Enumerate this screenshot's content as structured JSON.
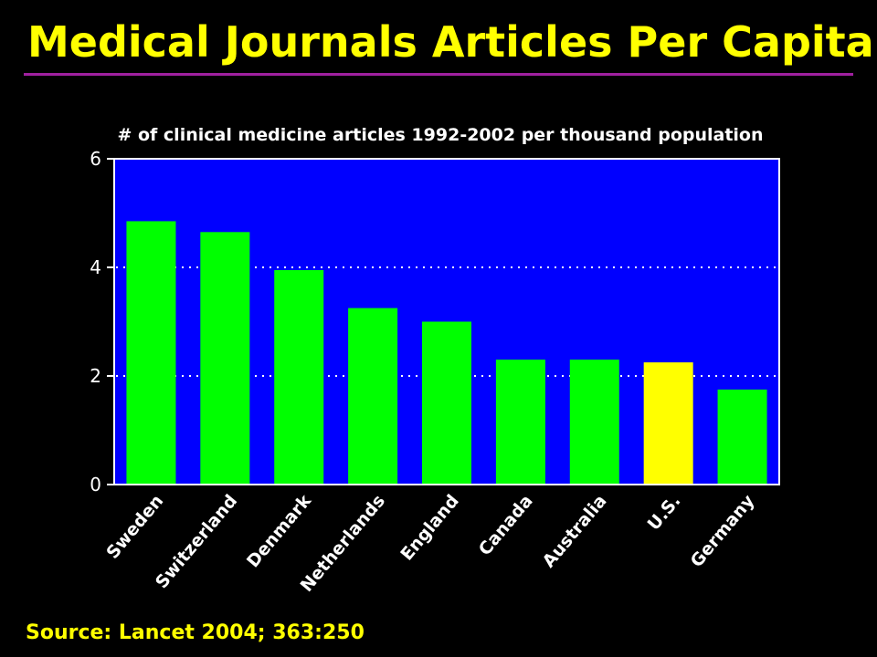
{
  "title": "Medical Journals Articles Per Capita",
  "source": "Source: Lancet 2004; 363:250",
  "colors": {
    "background": "#000000",
    "title": "#ffff00",
    "rule": "#a020a0",
    "plot_area": "#0000ff",
    "bar_default": "#00ff00",
    "bar_highlight": "#ffff00",
    "text": "#ffffff"
  },
  "chart_data": {
    "type": "bar",
    "title": "# of clinical medicine articles 1992-2002 per thousand population",
    "xlabel": "",
    "ylabel": "",
    "categories": [
      "Sweden",
      "Switzerland",
      "Denmark",
      "Netherlands",
      "England",
      "Canada",
      "Australia",
      "U.S.",
      "Germany"
    ],
    "values": [
      4.85,
      4.65,
      3.95,
      3.25,
      3.0,
      2.3,
      2.3,
      2.25,
      1.75
    ],
    "highlight": [
      "U.S."
    ],
    "ylim": [
      0,
      6
    ],
    "yticks": [
      "0",
      "2",
      "4",
      "6"
    ],
    "grid": true,
    "legend": "none"
  }
}
